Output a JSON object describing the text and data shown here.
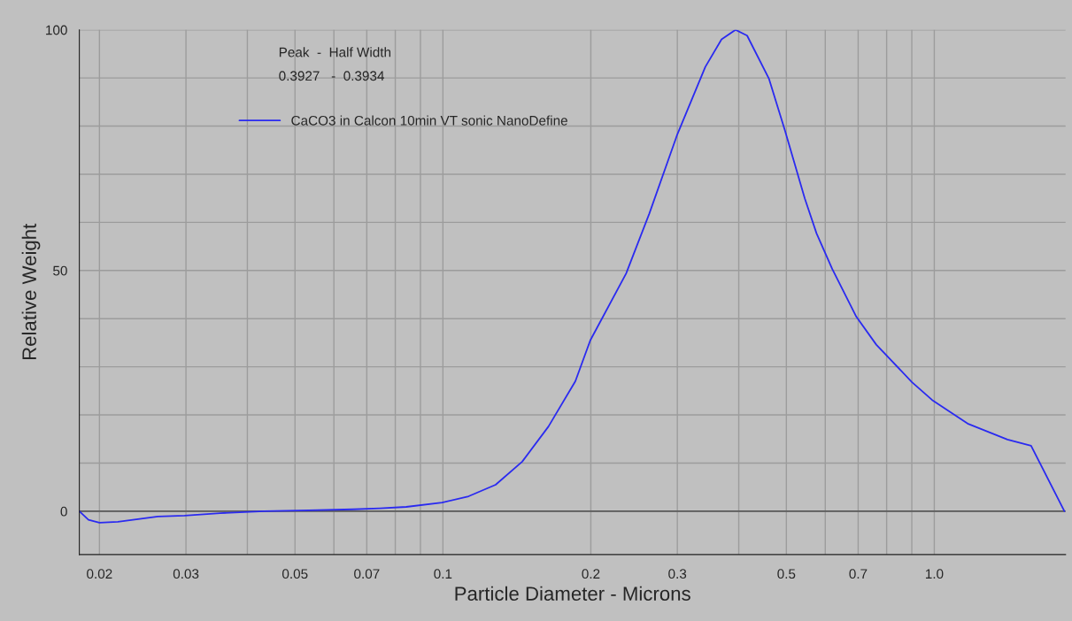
{
  "chart_data": {
    "type": "line",
    "xlabel": "Particle Diameter - Microns",
    "ylabel": "Relative Weight",
    "annotations": [
      "Peak  -  Half Width",
      "0.3927   -  0.3934"
    ],
    "log": "x",
    "grid": true,
    "legend": "top left",
    "marker": "none",
    "line_style": "solid",
    "xlim": [
      0.0182,
      1.85
    ],
    "ylim": [
      -9,
      100
    ],
    "xticks": [
      0.02,
      0.03,
      {
        "value": 0.04,
        "label": null
      },
      0.05,
      {
        "value": 0.06,
        "label": null
      },
      0.07,
      {
        "value": 0.08,
        "label": null
      },
      {
        "value": 0.09,
        "label": null
      },
      0.1,
      0.2,
      0.3,
      {
        "value": 0.4,
        "label": null
      },
      0.5,
      {
        "value": 0.6,
        "label": null
      },
      0.7,
      {
        "value": 0.8,
        "label": null
      },
      {
        "value": 0.9,
        "label": null
      },
      {
        "value": 1.0,
        "label": "1.0"
      }
    ],
    "yticks": [
      0,
      {
        "value": 10,
        "label": null
      },
      {
        "value": 20,
        "label": null
      },
      {
        "value": 30,
        "label": null
      },
      {
        "value": 40,
        "label": null
      },
      50,
      {
        "value": 60,
        "label": null
      },
      {
        "value": 70,
        "label": null
      },
      {
        "value": 80,
        "label": null
      },
      {
        "value": 90,
        "label": null
      },
      100
    ],
    "ref_lines": [
      {
        "axis": "y",
        "value": 0,
        "color": "#5a5a5a"
      }
    ],
    "series": [
      {
        "name": "CaCO3 in Calcon 10min VT sonic NanoDefine",
        "color": "#2a2af0",
        "x": [
          0.0182,
          0.019,
          0.02,
          0.0218,
          0.0263,
          0.0298,
          0.0352,
          0.0433,
          0.0534,
          0.0657,
          0.0745,
          0.0842,
          0.0996,
          0.1128,
          0.128,
          0.145,
          0.164,
          0.186,
          0.1995,
          0.236,
          0.263,
          0.3,
          0.342,
          0.369,
          0.394,
          0.416,
          0.461,
          0.497,
          0.545,
          0.576,
          0.62,
          0.694,
          0.762,
          0.901,
          0.99,
          1.169,
          1.409,
          1.574,
          1.84
        ],
        "values": [
          0,
          -1.8,
          -2.4,
          -2.2,
          -1.1,
          -0.9,
          -0.4,
          0,
          0.2,
          0.4,
          0.6,
          0.9,
          1.8,
          3.1,
          5.5,
          10.3,
          17.6,
          27,
          35.5,
          49.4,
          61.8,
          78.3,
          92.3,
          98,
          100,
          98.8,
          89.8,
          79,
          65,
          57.7,
          50.3,
          40.4,
          34.6,
          26.8,
          23.1,
          18.2,
          14.9,
          13.6,
          0
        ]
      }
    ]
  }
}
